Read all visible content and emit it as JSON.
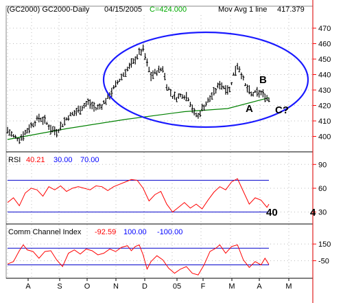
{
  "header": {
    "symbol": "(GC2000) GC2000-Daily",
    "date": "04/15/2005",
    "close": "C=424.000",
    "ma_label": "Mov Avg 1 line",
    "ma_value": "417.379"
  },
  "colors": {
    "price_bars": "#000000",
    "moving_average": "#008000",
    "rsi_line": "#ff0000",
    "cci_line": "#ff0000",
    "reference_lines": "#0000cc",
    "ellipse": "#1a1aff",
    "axis": "#ff0000",
    "close_text": "#00aa00"
  },
  "chart_data": [
    {
      "type": "bar",
      "name": "price",
      "ylim": [
        390,
        478
      ],
      "yticks": [
        400,
        410,
        420,
        430,
        440,
        450,
        460,
        470
      ],
      "annotations": [
        "A",
        "B",
        "C?"
      ],
      "price_path": [
        [
          0,
          404
        ],
        [
          3,
          400
        ],
        [
          6,
          398
        ],
        [
          8,
          401
        ],
        [
          12,
          407
        ],
        [
          16,
          412
        ],
        [
          19,
          410
        ],
        [
          22,
          405
        ],
        [
          25,
          403
        ],
        [
          28,
          408
        ],
        [
          31,
          413
        ],
        [
          35,
          416
        ],
        [
          38,
          419
        ],
        [
          41,
          422
        ],
        [
          45,
          418
        ],
        [
          48,
          420
        ],
        [
          52,
          427
        ],
        [
          56,
          435
        ],
        [
          60,
          442
        ],
        [
          64,
          448
        ],
        [
          67,
          454
        ],
        [
          69,
          456
        ],
        [
          71,
          447
        ],
        [
          73,
          439
        ],
        [
          76,
          442
        ],
        [
          79,
          444
        ],
        [
          81,
          433
        ],
        [
          84,
          426
        ],
        [
          86,
          425
        ],
        [
          89,
          427
        ],
        [
          92,
          425
        ],
        [
          95,
          415
        ],
        [
          97,
          413
        ],
        [
          99,
          418
        ],
        [
          102,
          423
        ],
        [
          105,
          428
        ],
        [
          108,
          434
        ],
        [
          110,
          432
        ],
        [
          113,
          430
        ],
        [
          115,
          440
        ],
        [
          117,
          446
        ],
        [
          118,
          444
        ],
        [
          121,
          433
        ],
        [
          124,
          427
        ],
        [
          126,
          428
        ],
        [
          129,
          428
        ],
        [
          132,
          425
        ],
        [
          133,
          424
        ]
      ],
      "moving_average": [
        [
          0,
          398
        ],
        [
          30,
          405
        ],
        [
          60,
          411
        ],
        [
          90,
          416
        ],
        [
          112,
          418
        ],
        [
          133,
          425
        ]
      ]
    },
    {
      "type": "line",
      "name": "RSI",
      "label": "RSI",
      "value": "40.21",
      "levels": [
        "30.00",
        "70.00"
      ],
      "ylim": [
        15,
        92
      ],
      "yticks": [
        30,
        60,
        90
      ],
      "current_label": "40",
      "values": [
        [
          0,
          42
        ],
        [
          3,
          48
        ],
        [
          6,
          38
        ],
        [
          9,
          54
        ],
        [
          12,
          60
        ],
        [
          15,
          58
        ],
        [
          18,
          50
        ],
        [
          21,
          62
        ],
        [
          24,
          58
        ],
        [
          27,
          63
        ],
        [
          30,
          56
        ],
        [
          33,
          60
        ],
        [
          36,
          62
        ],
        [
          39,
          60
        ],
        [
          42,
          58
        ],
        [
          45,
          63
        ],
        [
          48,
          62
        ],
        [
          51,
          57
        ],
        [
          54,
          62
        ],
        [
          57,
          65
        ],
        [
          60,
          68
        ],
        [
          63,
          71
        ],
        [
          66,
          70
        ],
        [
          69,
          60
        ],
        [
          72,
          44
        ],
        [
          75,
          52
        ],
        [
          78,
          56
        ],
        [
          81,
          40
        ],
        [
          84,
          30
        ],
        [
          87,
          36
        ],
        [
          90,
          42
        ],
        [
          93,
          35
        ],
        [
          96,
          40
        ],
        [
          99,
          34
        ],
        [
          102,
          45
        ],
        [
          105,
          55
        ],
        [
          108,
          62
        ],
        [
          111,
          58
        ],
        [
          114,
          68
        ],
        [
          117,
          72
        ],
        [
          120,
          56
        ],
        [
          123,
          40
        ],
        [
          126,
          48
        ],
        [
          129,
          45
        ],
        [
          132,
          36
        ],
        [
          133,
          40
        ]
      ]
    },
    {
      "type": "line",
      "name": "CCI",
      "label": "Comm Channel Index",
      "value": "-92.59",
      "levels": [
        "100.00",
        "-100.00"
      ],
      "ylim": [
        -260,
        250
      ],
      "yticks": [
        150,
        -50
      ],
      "values": [
        [
          0,
          -90
        ],
        [
          3,
          -60
        ],
        [
          6,
          70
        ],
        [
          8,
          140
        ],
        [
          10,
          80
        ],
        [
          13,
          60
        ],
        [
          16,
          -20
        ],
        [
          19,
          60
        ],
        [
          22,
          70
        ],
        [
          25,
          -40
        ],
        [
          28,
          -120
        ],
        [
          31,
          40
        ],
        [
          34,
          80
        ],
        [
          37,
          30
        ],
        [
          40,
          90
        ],
        [
          43,
          70
        ],
        [
          46,
          20
        ],
        [
          49,
          40
        ],
        [
          52,
          90
        ],
        [
          55,
          60
        ],
        [
          58,
          110
        ],
        [
          61,
          130
        ],
        [
          63,
          70
        ],
        [
          65,
          120
        ],
        [
          67,
          140
        ],
        [
          69,
          20
        ],
        [
          71,
          -150
        ],
        [
          73,
          -60
        ],
        [
          76,
          10
        ],
        [
          79,
          -40
        ],
        [
          82,
          -140
        ],
        [
          85,
          -200
        ],
        [
          88,
          -150
        ],
        [
          91,
          -120
        ],
        [
          94,
          -200
        ],
        [
          97,
          -220
        ],
        [
          100,
          -100
        ],
        [
          103,
          60
        ],
        [
          106,
          100
        ],
        [
          108,
          140
        ],
        [
          111,
          40
        ],
        [
          114,
          120
        ],
        [
          117,
          140
        ],
        [
          120,
          -40
        ],
        [
          123,
          -130
        ],
        [
          126,
          -60
        ],
        [
          129,
          -100
        ],
        [
          131,
          -20
        ],
        [
          133,
          -95
        ]
      ]
    }
  ],
  "x_axis": {
    "months": [
      "A",
      "S",
      "O",
      "N",
      "D",
      "05",
      "F",
      "M",
      "A",
      "M"
    ]
  }
}
